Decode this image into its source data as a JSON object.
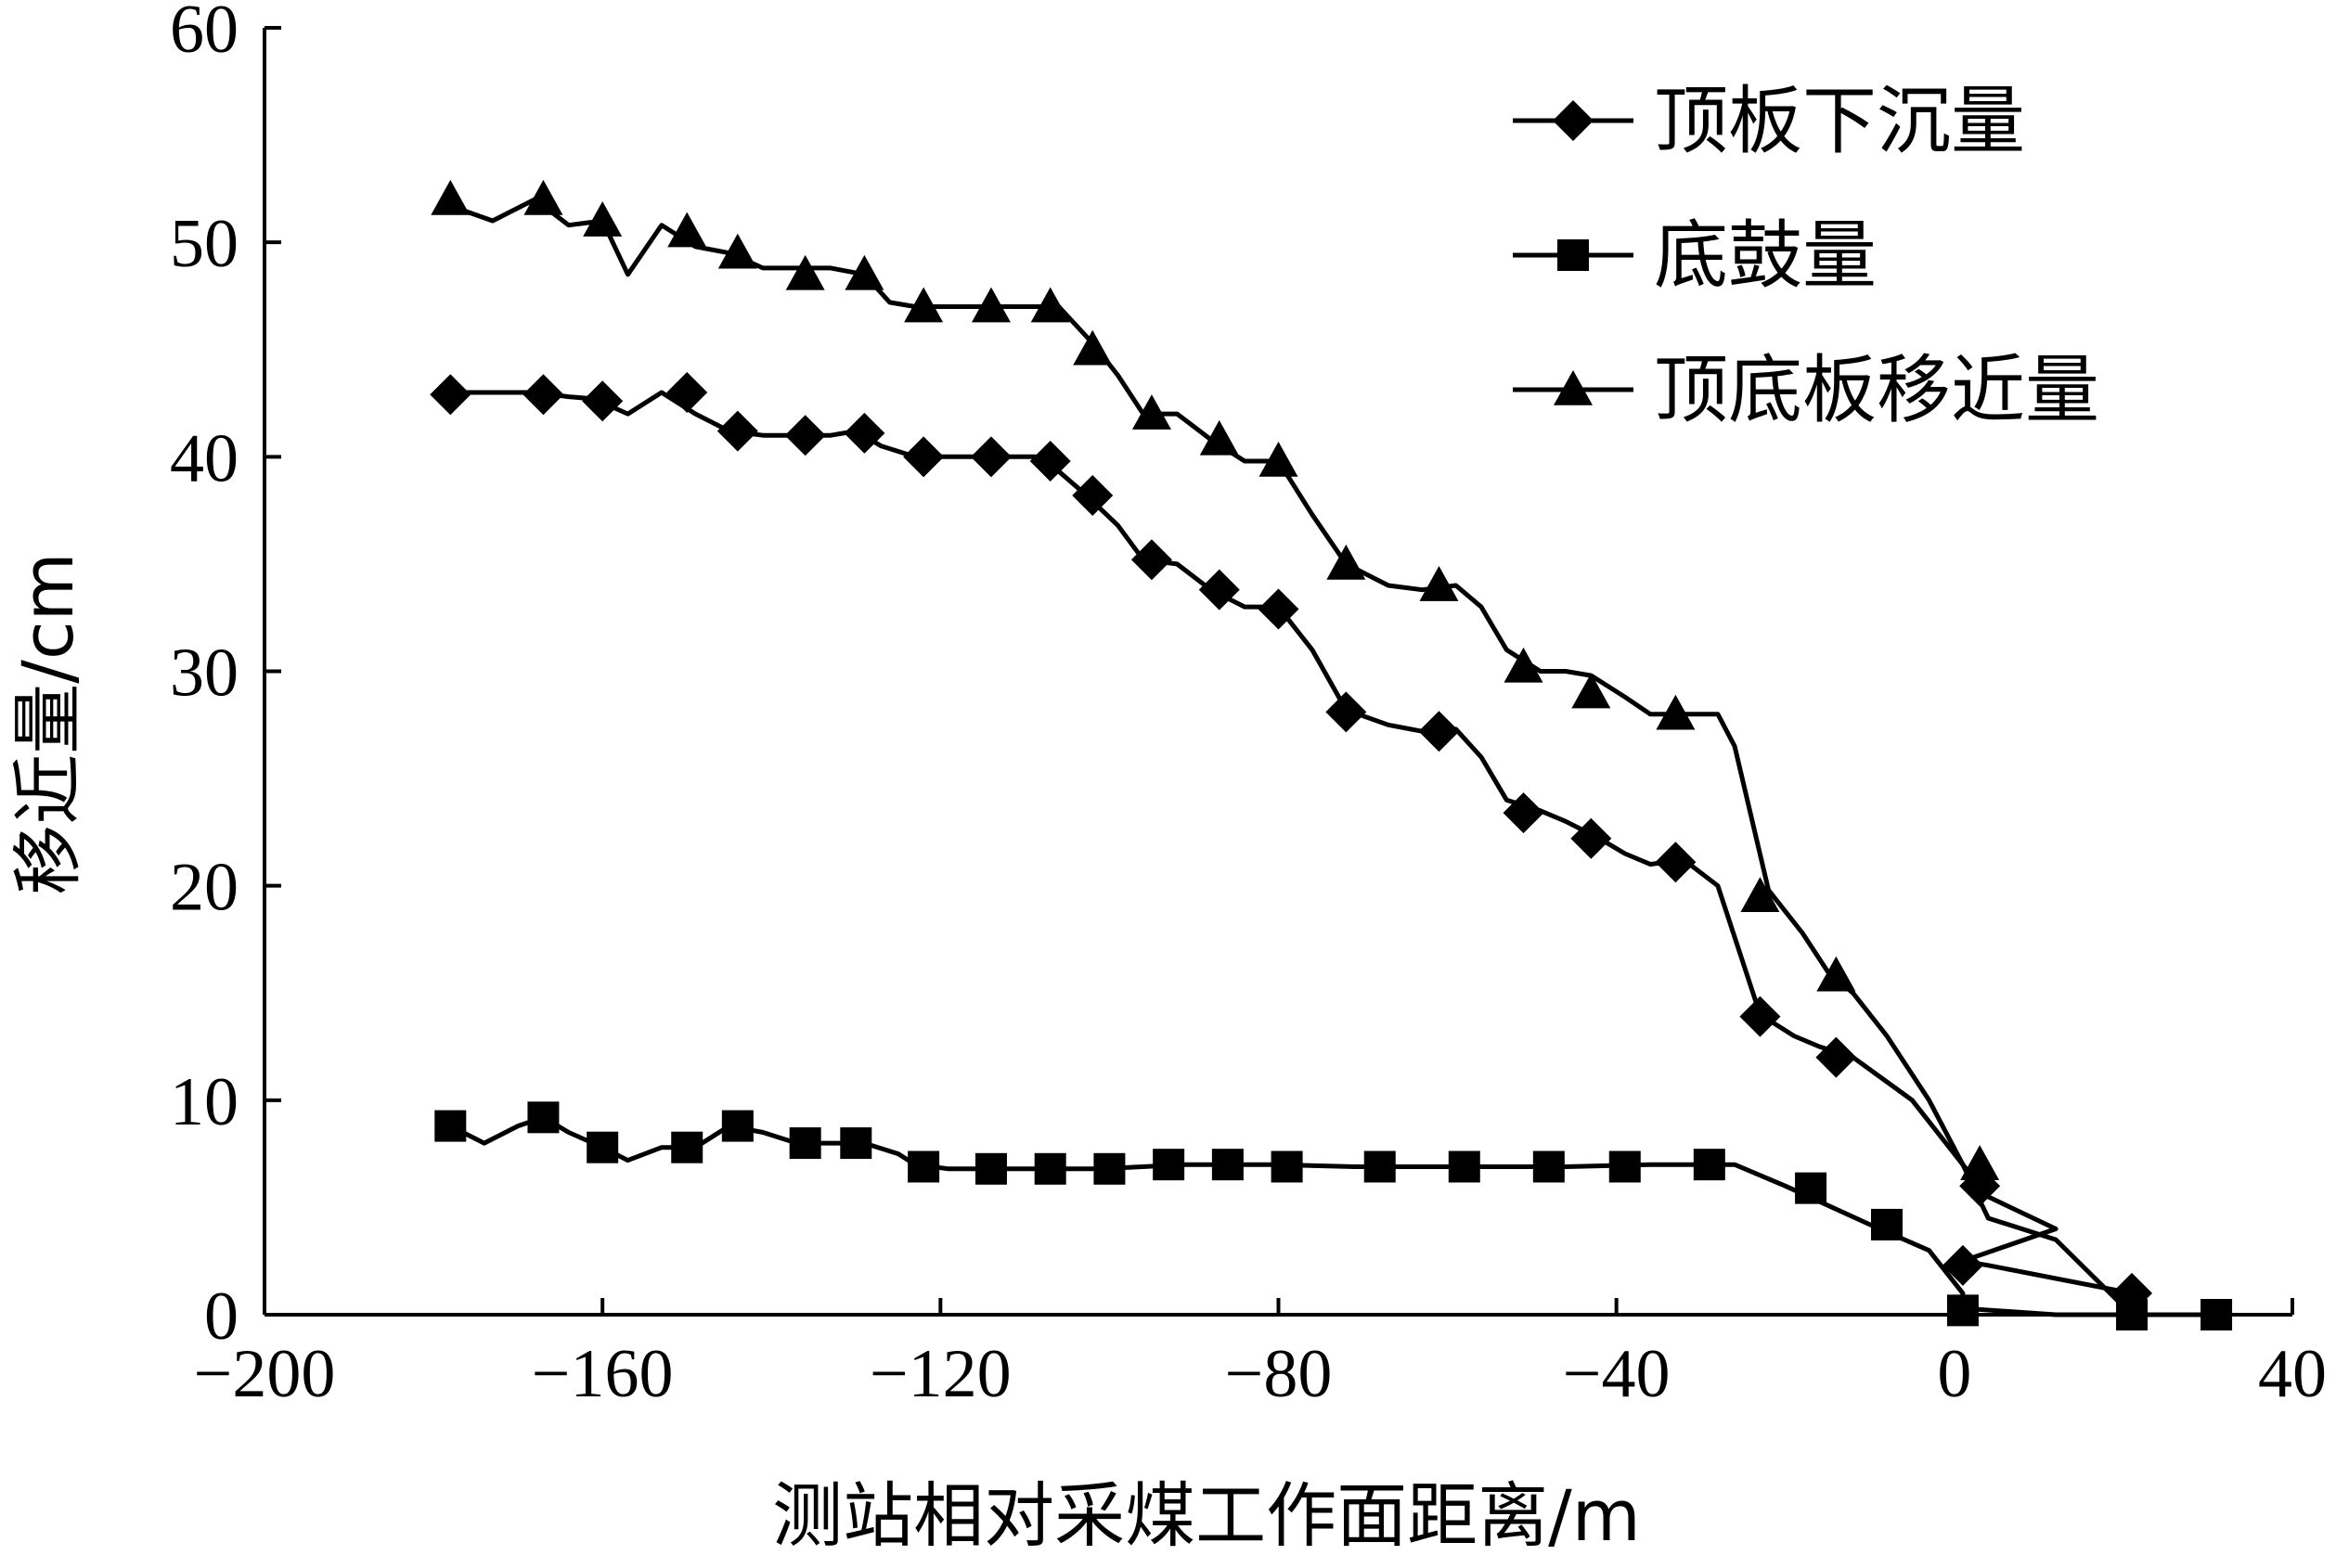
{
  "chart_data": {
    "type": "line",
    "title": "",
    "xlabel": "测站相对采煤工作面距离/m",
    "ylabel": "移近量/cm",
    "xlim": [
      -200,
      40
    ],
    "ylim": [
      0,
      60
    ],
    "xticks": [
      -200,
      -160,
      -120,
      -80,
      -40,
      0,
      40
    ],
    "yticks": [
      0,
      10,
      20,
      30,
      40,
      50,
      60
    ],
    "xtick_labels": [
      "−200",
      "−160",
      "−120",
      "−80",
      "−40",
      "0",
      "40"
    ],
    "ytick_labels": [
      "0",
      "10",
      "20",
      "30",
      "40",
      "50",
      "60"
    ],
    "grid": false,
    "legend": {
      "position": "top-right"
    },
    "series": [
      {
        "name": "顶板下沉量",
        "marker": "diamond",
        "line": [
          [
            -178,
            43
          ],
          [
            -173,
            43
          ],
          [
            -168,
            43
          ],
          [
            -164,
            42.8
          ],
          [
            -161,
            42.7
          ],
          [
            -157,
            42
          ],
          [
            -153,
            43
          ],
          [
            -149,
            42
          ],
          [
            -145,
            41.2
          ],
          [
            -141,
            41
          ],
          [
            -137,
            41
          ],
          [
            -133,
            41
          ],
          [
            -130,
            41.2
          ],
          [
            -127,
            40.5
          ],
          [
            -123,
            40
          ],
          [
            -119,
            40
          ],
          [
            -115,
            40
          ],
          [
            -111,
            40
          ],
          [
            -108,
            40
          ],
          [
            -103,
            38.3
          ],
          [
            -99,
            36.8
          ],
          [
            -96,
            35.2
          ],
          [
            -92,
            35
          ],
          [
            -88,
            33.8
          ],
          [
            -84,
            33
          ],
          [
            -80,
            33
          ],
          [
            -76,
            31
          ],
          [
            -72,
            28.2
          ],
          [
            -67,
            27.5
          ],
          [
            -63,
            27.2
          ],
          [
            -59,
            27.3
          ],
          [
            -56,
            26
          ],
          [
            -53,
            24
          ],
          [
            -49,
            23.5
          ],
          [
            -46,
            23
          ],
          [
            -42,
            22.2
          ],
          [
            -39,
            21.5
          ],
          [
            -36,
            21
          ],
          [
            -32,
            21.2
          ],
          [
            -28,
            20
          ],
          [
            -23,
            14
          ],
          [
            -19,
            13
          ],
          [
            -16,
            12.5
          ],
          [
            -12,
            12
          ],
          [
            -5,
            10
          ],
          [
            1,
            7
          ],
          [
            4,
            5.5
          ],
          [
            12,
            4
          ],
          [
            1,
            2.5
          ],
          [
            4,
            2.3
          ],
          [
            21,
            1
          ]
        ],
        "markers": [
          [
            -178,
            42.9
          ],
          [
            -167,
            42.9
          ],
          [
            -160,
            42.6
          ],
          [
            -150,
            43
          ],
          [
            -144,
            41.2
          ],
          [
            -136,
            41
          ],
          [
            -129,
            41.1
          ],
          [
            -122,
            40
          ],
          [
            -114,
            40
          ],
          [
            -107,
            39.8
          ],
          [
            -102,
            38.2
          ],
          [
            -95,
            35.2
          ],
          [
            -87,
            33.8
          ],
          [
            -80,
            32.9
          ],
          [
            -72,
            28.1
          ],
          [
            -61,
            27.2
          ],
          [
            -51,
            23.4
          ],
          [
            -43,
            22.2
          ],
          [
            -33,
            21.1
          ],
          [
            -23,
            13.9
          ],
          [
            -14,
            12
          ],
          [
            3,
            6
          ],
          [
            1,
            2.3
          ],
          [
            21,
            1
          ]
        ]
      },
      {
        "name": "底鼓量",
        "marker": "square",
        "line": [
          [
            -178,
            8.8
          ],
          [
            -174,
            8
          ],
          [
            -170,
            8.8
          ],
          [
            -167,
            9.2
          ],
          [
            -164,
            8.5
          ],
          [
            -160,
            7.8
          ],
          [
            -157,
            7.2
          ],
          [
            -153,
            7.8
          ],
          [
            -149,
            7.8
          ],
          [
            -145,
            8.8
          ],
          [
            -141,
            8.5
          ],
          [
            -137,
            8
          ],
          [
            -133,
            8
          ],
          [
            -129,
            8
          ],
          [
            -125,
            7.5
          ],
          [
            -123,
            7
          ],
          [
            -119,
            6.8
          ],
          [
            -115,
            6.8
          ],
          [
            -111,
            6.8
          ],
          [
            -101,
            6.8
          ],
          [
            -91,
            7
          ],
          [
            -81,
            7
          ],
          [
            -71,
            6.9
          ],
          [
            -56,
            6.9
          ],
          [
            -46,
            6.9
          ],
          [
            -36,
            7
          ],
          [
            -26,
            7
          ],
          [
            -20,
            6
          ],
          [
            -10,
            4.2
          ],
          [
            -3,
            3
          ],
          [
            1,
            1
          ],
          [
            1,
            0.3
          ],
          [
            12,
            0
          ],
          [
            21,
            0
          ],
          [
            31,
            0
          ]
        ],
        "markers": [
          [
            -178,
            8.8
          ],
          [
            -167,
            9.2
          ],
          [
            -160,
            7.8
          ],
          [
            -150,
            7.8
          ],
          [
            -144,
            8.8
          ],
          [
            -136,
            8
          ],
          [
            -130,
            8
          ],
          [
            -122,
            6.9
          ],
          [
            -114,
            6.8
          ],
          [
            -107,
            6.8
          ],
          [
            -100,
            6.8
          ],
          [
            -93,
            7
          ],
          [
            -86,
            7
          ],
          [
            -79,
            6.9
          ],
          [
            -68,
            6.9
          ],
          [
            -58,
            6.9
          ],
          [
            -48,
            6.9
          ],
          [
            -39,
            6.9
          ],
          [
            -29,
            7
          ],
          [
            -17,
            5.9
          ],
          [
            -8,
            4.2
          ],
          [
            1,
            0.2
          ],
          [
            21,
            0
          ],
          [
            31,
            0
          ]
        ]
      },
      {
        "name": "顶底板移近量",
        "marker": "triangle",
        "line": [
          [
            -178,
            51.7
          ],
          [
            -173,
            51
          ],
          [
            -168,
            52
          ],
          [
            -164,
            50.8
          ],
          [
            -160,
            51
          ],
          [
            -157,
            48.5
          ],
          [
            -153,
            50.8
          ],
          [
            -149,
            49.8
          ],
          [
            -145,
            49.5
          ],
          [
            -141,
            48.8
          ],
          [
            -137,
            48.8
          ],
          [
            -133,
            48.8
          ],
          [
            -129,
            48.5
          ],
          [
            -126,
            47.2
          ],
          [
            -123,
            47
          ],
          [
            -119,
            47
          ],
          [
            -115,
            47
          ],
          [
            -111,
            47
          ],
          [
            -106,
            47
          ],
          [
            -102,
            45.3
          ],
          [
            -99,
            43.8
          ],
          [
            -96,
            42
          ],
          [
            -92,
            42
          ],
          [
            -88,
            40.8
          ],
          [
            -84,
            39.8
          ],
          [
            -80,
            39.8
          ],
          [
            -76,
            37.3
          ],
          [
            -72,
            35
          ],
          [
            -67,
            34
          ],
          [
            -63,
            33.8
          ],
          [
            -59,
            34
          ],
          [
            -56,
            33
          ],
          [
            -53,
            31
          ],
          [
            -49,
            30
          ],
          [
            -46,
            30
          ],
          [
            -43,
            29.8
          ],
          [
            -39,
            28.8
          ],
          [
            -36,
            28
          ],
          [
            -32,
            28
          ],
          [
            -28,
            28
          ],
          [
            -26,
            26.5
          ],
          [
            -22,
            19.8
          ],
          [
            -18,
            17.8
          ],
          [
            -15,
            16
          ],
          [
            -12,
            15
          ],
          [
            -8,
            13
          ],
          [
            -3,
            10
          ],
          [
            1,
            7
          ],
          [
            4,
            4.5
          ],
          [
            12,
            3.5
          ],
          [
            21,
            0
          ],
          [
            31,
            0
          ]
        ],
        "markers": [
          [
            -178,
            52
          ],
          [
            -167,
            52
          ],
          [
            -160,
            51
          ],
          [
            -150,
            50.5
          ],
          [
            -144,
            49.5
          ],
          [
            -136,
            48.5
          ],
          [
            -129,
            48.5
          ],
          [
            -122,
            47
          ],
          [
            -114,
            47
          ],
          [
            -107,
            47
          ],
          [
            -102,
            45
          ],
          [
            -95,
            42
          ],
          [
            -87,
            40.8
          ],
          [
            -80,
            39.8
          ],
          [
            -72,
            35
          ],
          [
            -61,
            34
          ],
          [
            -51,
            30.2
          ],
          [
            -43,
            29
          ],
          [
            -33,
            28
          ],
          [
            -23,
            19.5
          ],
          [
            -14,
            15.8
          ],
          [
            3,
            7
          ]
        ]
      }
    ]
  }
}
